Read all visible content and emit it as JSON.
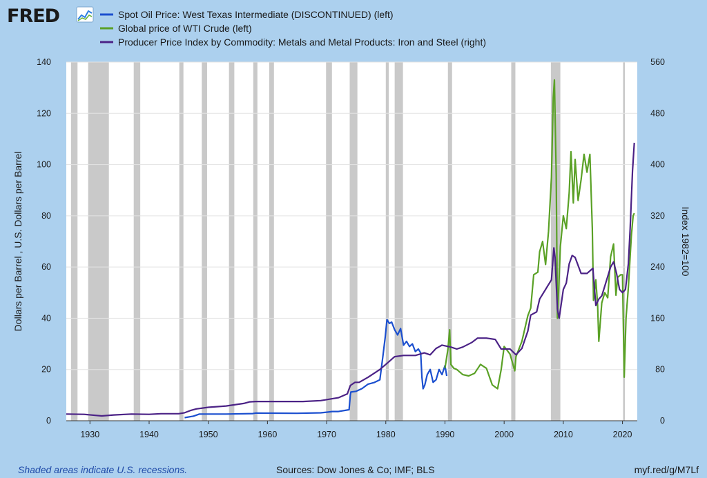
{
  "logo": {
    "text": "FRED"
  },
  "footer": {
    "recession_note": "Shaded areas indicate U.S. recessions.",
    "sources": "Sources: Dow Jones & Co; IMF; BLS",
    "short_url": "myf.red/g/M7Lf"
  },
  "colors": {
    "background": "#acd0ee",
    "plot_area": "#ffffff",
    "recession_shade": "#c9c9c9",
    "spot_oil": "#1b4fcf",
    "wti_global": "#5aa126",
    "ppi_iron_steel": "#4b2286"
  },
  "chart_data": {
    "type": "line",
    "legend_placement": "top",
    "grid": true,
    "x_axis": {
      "range": [
        1926,
        2022.5
      ],
      "ticks": [
        1930,
        1940,
        1950,
        1960,
        1970,
        1980,
        1990,
        2000,
        2010,
        2020
      ],
      "tick_labels": [
        "1930",
        "1940",
        "1950",
        "1960",
        "1970",
        "1980",
        "1990",
        "2000",
        "2010",
        "2020"
      ]
    },
    "y_left": {
      "label": "Dollars per Barrel , U.S. Dollars per Barrel",
      "range": [
        0,
        140
      ],
      "ticks": [
        0,
        20,
        40,
        60,
        80,
        100,
        120,
        140
      ],
      "tick_labels": [
        "0",
        "20",
        "40",
        "60",
        "80",
        "100",
        "120",
        "140"
      ]
    },
    "y_right": {
      "label": "Index 1982=100",
      "range": [
        0,
        560
      ],
      "ticks": [
        0,
        80,
        160,
        240,
        320,
        400,
        480,
        560
      ],
      "tick_labels": [
        "0",
        "80",
        "160",
        "240",
        "320",
        "400",
        "480",
        "560"
      ]
    },
    "recessions": [
      [
        1926.8,
        1927.9
      ],
      [
        1929.7,
        1933.2
      ],
      [
        1937.4,
        1938.5
      ],
      [
        1945.1,
        1945.8
      ],
      [
        1948.9,
        1949.8
      ],
      [
        1953.5,
        1954.4
      ],
      [
        1957.6,
        1958.3
      ],
      [
        1960.3,
        1961.1
      ],
      [
        1969.9,
        1970.9
      ],
      [
        1973.9,
        1975.2
      ],
      [
        1980.0,
        1980.5
      ],
      [
        1981.5,
        1982.9
      ],
      [
        1990.5,
        1991.2
      ],
      [
        2001.2,
        2001.9
      ],
      [
        2007.9,
        2009.5
      ],
      [
        2020.1,
        2020.4
      ]
    ],
    "series": [
      {
        "name": "Spot Oil Price: West Texas Intermediate (DISCONTINUED) (left)",
        "axis": "left",
        "x": [
          1946.0,
          1947.5,
          1948.5,
          1949.0,
          1950,
          1953,
          1957.5,
          1958,
          1961,
          1965,
          1969,
          1970,
          1971,
          1972,
          1973.8,
          1974.0,
          1974.1,
          1975,
          1976,
          1977,
          1978,
          1979.0,
          1979.5,
          1979.9,
          1980.2,
          1980.6,
          1981.0,
          1981.5,
          1982,
          1982.5,
          1983,
          1983.5,
          1984,
          1984.5,
          1985,
          1985.5,
          1985.9,
          1986.1,
          1986.3,
          1986.6,
          1987,
          1987.5,
          1988,
          1988.5,
          1989,
          1989.5,
          1990,
          1990.3
        ],
        "values": [
          1.2,
          1.8,
          2.6,
          2.6,
          2.6,
          2.6,
          2.8,
          3.0,
          2.97,
          2.92,
          3.1,
          3.35,
          3.6,
          3.6,
          4.3,
          10.1,
          11.2,
          11.5,
          12.6,
          14.3,
          14.9,
          16.0,
          25.0,
          32.5,
          39.5,
          38.0,
          38.5,
          35.5,
          33.5,
          36.0,
          29.5,
          31.0,
          29.0,
          30.0,
          27.0,
          28.0,
          26.5,
          17.0,
          12.5,
          14.0,
          18.0,
          20.0,
          15.0,
          16.0,
          20.0,
          18.0,
          21.5,
          17.5
        ]
      },
      {
        "name": "Global price of WTI Crude (left)",
        "axis": "left",
        "x": [
          1990.0,
          1990.5,
          1990.8,
          1991.0,
          1991.5,
          1992,
          1993,
          1994,
          1995,
          1996,
          1997,
          1998,
          1998.9,
          1999.5,
          2000,
          2001,
          2001.8,
          2002,
          2003,
          2004,
          2004.5,
          2005,
          2005.7,
          2006,
          2006.5,
          2007,
          2007.5,
          2008.0,
          2008.3,
          2008.5,
          2008.8,
          2009.0,
          2009.2,
          2009.5,
          2010,
          2010.5,
          2011.0,
          2011.3,
          2011.7,
          2012.0,
          2012.5,
          2013,
          2013.5,
          2014.0,
          2014.5,
          2014.9,
          2015.1,
          2015.5,
          2015.8,
          2016.0,
          2016.5,
          2017,
          2017.5,
          2018.0,
          2018.5,
          2018.9,
          2019.2,
          2019.7,
          2020.0,
          2020.3,
          2020.6,
          2021.0,
          2021.5,
          2021.8,
          2022.0
        ],
        "values": [
          20.5,
          28.0,
          35.5,
          22.0,
          20.5,
          20.0,
          18.0,
          17.5,
          18.5,
          22.0,
          20.5,
          14.0,
          12.5,
          20.0,
          29.0,
          26.0,
          19.5,
          25.0,
          31.0,
          41.0,
          44.0,
          57.0,
          58.0,
          66.0,
          70.0,
          61.0,
          74.0,
          95.0,
          126.0,
          133.0,
          96.0,
          40.0,
          50.0,
          68.0,
          80.0,
          75.0,
          89.0,
          105.0,
          85.0,
          102.0,
          86.0,
          94.0,
          104.0,
          97.0,
          104.0,
          75.0,
          47.0,
          55.0,
          45.0,
          31.0,
          46.0,
          50.0,
          48.0,
          64.0,
          69.0,
          49.0,
          56.0,
          57.0,
          57.0,
          17.0,
          40.0,
          52.0,
          72.0,
          80.0,
          81.0
        ]
      },
      {
        "name": "Producer Price Index by Commodity: Metals and Metal Products: Iron and Steel (right)",
        "axis": "right",
        "x": [
          1926,
          1929,
          1932,
          1934,
          1937,
          1940,
          1942,
          1945,
          1946,
          1947,
          1948,
          1950,
          1953,
          1956,
          1957,
          1958,
          1962,
          1966,
          1969,
          1972,
          1973.5,
          1974.0,
          1974.8,
          1975.5,
          1977,
          1979,
          1980.5,
          1981.5,
          1983,
          1985,
          1986.5,
          1987.5,
          1988.5,
          1989.5,
          1991,
          1992,
          1993,
          1994.5,
          1995.5,
          1997,
          1998.5,
          1999.5,
          2001,
          2002,
          2002.5,
          2003,
          2004,
          2004.5,
          2005.5,
          2006,
          2007,
          2008.0,
          2008.4,
          2008.6,
          2009.0,
          2009.3,
          2010,
          2010.5,
          2011.0,
          2011.5,
          2012,
          2013,
          2014,
          2015,
          2015.5,
          2016.0,
          2016.5,
          2017,
          2018.0,
          2018.5,
          2019,
          2019.5,
          2020.0,
          2020.5,
          2021.0,
          2021.3,
          2021.7,
          2022.0
        ],
        "values": [
          10.5,
          10.0,
          7.5,
          9.0,
          10.5,
          10.0,
          11.0,
          11.0,
          12.5,
          16.0,
          18.5,
          21.0,
          23.0,
          27.0,
          29.5,
          30.0,
          30.0,
          30.0,
          31.5,
          36.0,
          42.0,
          55.0,
          60.0,
          60.0,
          68.0,
          80.0,
          92.0,
          100.0,
          102.0,
          102.0,
          106.0,
          103.0,
          113.0,
          118.0,
          115.0,
          112.0,
          115.0,
          122.0,
          129.0,
          129.0,
          127.0,
          112.0,
          112.0,
          103.0,
          108.0,
          113.0,
          140.0,
          165.0,
          170.0,
          190.0,
          205.0,
          220.0,
          270.0,
          255.0,
          175.0,
          160.0,
          205.0,
          215.0,
          245.0,
          258.0,
          255.0,
          230.0,
          230.0,
          238.0,
          180.0,
          190.0,
          195.0,
          210.0,
          240.0,
          248.0,
          230.0,
          205.0,
          200.0,
          205.0,
          245.0,
          300.0,
          390.0,
          434.0
        ]
      }
    ]
  }
}
